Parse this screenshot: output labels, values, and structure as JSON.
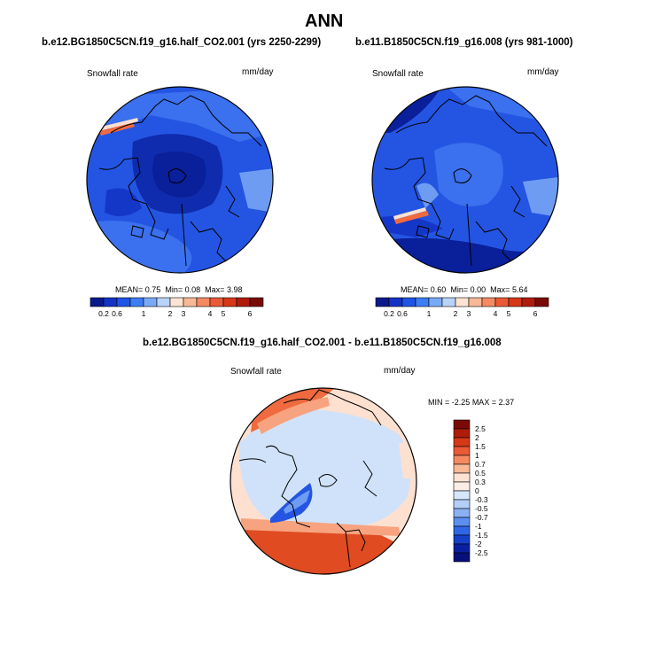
{
  "figure": {
    "title": "ANN"
  },
  "panels": [
    {
      "title": "b.e12.BG1850C5CN.f19_g16.half_CO2.001 (yrs 2250-2299)",
      "field_label": "Snowfall rate",
      "units": "mm/day",
      "stats": {
        "mean_label": "MEAN=",
        "mean": "0.75",
        "min_label": "Min=",
        "min": "0.08",
        "max_label": "Max=",
        "max": "3.98"
      },
      "colorbar": {
        "labels": [
          "0.2",
          "0.6",
          "1",
          "2",
          "3",
          "4",
          "5",
          "6"
        ],
        "colors": [
          "#0a1a8c",
          "#1233c4",
          "#1e55e6",
          "#3d7df5",
          "#7aaaf7",
          "#b9d3f8",
          "#fde3d3",
          "#f9b896",
          "#f48a62",
          "#ea5a36",
          "#d63818",
          "#b01c0c",
          "#7a0a05"
        ]
      }
    },
    {
      "title": "b.e11.B1850C5CN.f19_g16.008 (yrs 981-1000)",
      "field_label": "Snowfall rate",
      "units": "mm/day",
      "stats": {
        "mean_label": "MEAN=",
        "mean": "0.60",
        "min_label": "Min=",
        "min": "0.00",
        "max_label": "Max=",
        "max": "5.64"
      },
      "colorbar": {
        "labels": [
          "0.2",
          "0.6",
          "1",
          "2",
          "3",
          "4",
          "5",
          "6"
        ],
        "colors": [
          "#0a1a8c",
          "#1233c4",
          "#1e55e6",
          "#3d7df5",
          "#7aaaf7",
          "#b9d3f8",
          "#fde3d3",
          "#f9b896",
          "#f48a62",
          "#ea5a36",
          "#d63818",
          "#b01c0c",
          "#7a0a05"
        ]
      }
    },
    {
      "title": "b.e12.BG1850C5CN.f19_g16.half_CO2.001 - b.e11.B1850C5CN.f19_g16.008",
      "field_label": "Snowfall rate",
      "units": "mm/day",
      "stats": {
        "min_label": "MIN =",
        "min": "-2.25",
        "max_label": "MAX =",
        "max": "2.37"
      },
      "colorbar": {
        "labels": [
          "2.5",
          "2",
          "1.5",
          "1",
          "0.7",
          "0.5",
          "0.3",
          "0",
          "-0.3",
          "-0.5",
          "-0.7",
          "-1",
          "-1.5",
          "-2",
          "-2.5"
        ],
        "colors": [
          "#7a0a05",
          "#b01c0c",
          "#d63818",
          "#ea5a36",
          "#f48a62",
          "#f9b896",
          "#fde3d3",
          "#fbeee6",
          "#d6e6fb",
          "#b3cff7",
          "#8ab1f4",
          "#5c8ff0",
          "#2f66e6",
          "#1540c8",
          "#0a1fa0",
          "#061078"
        ]
      }
    }
  ],
  "map_colors": {
    "deep": "#0a1f9a",
    "dark": "#1537c8",
    "mid": "#2455e2",
    "light": "#3b70ee",
    "pale": "#6f9cf3",
    "paleblue": "#cfe2fa",
    "peach": "#fde0cf",
    "salmon": "#f7a37f",
    "orange": "#ef6a3f",
    "red": "#e04b22",
    "coast": "#000000"
  }
}
